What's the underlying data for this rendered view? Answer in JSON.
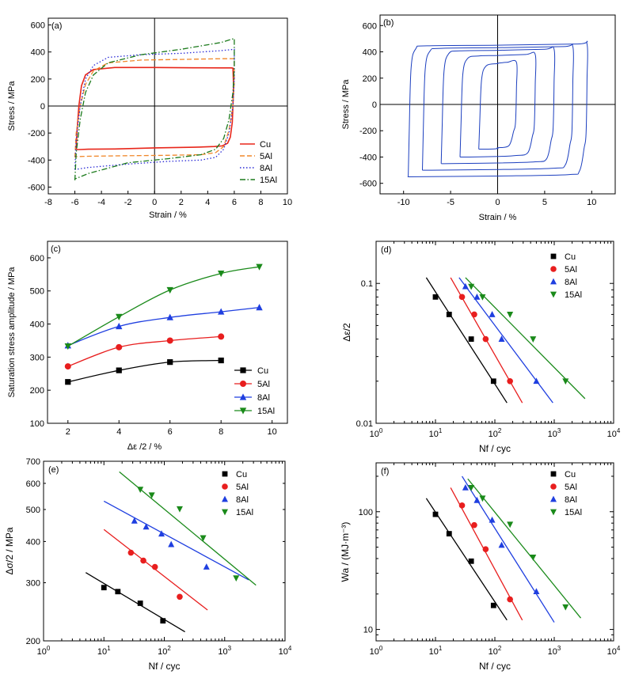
{
  "chart_data": [
    {
      "panel": "(a)",
      "type": "line",
      "xlabel": "Strain / %",
      "ylabel": "Stress / MPa",
      "xlim": [
        -8,
        10
      ],
      "ylim": [
        -650,
        650
      ],
      "xticks": [
        -8,
        -6,
        -4,
        -2,
        0,
        2,
        4,
        6,
        8,
        10
      ],
      "yticks": [
        -600,
        -400,
        -200,
        0,
        200,
        400,
        600
      ],
      "legend_position": "bottom-right",
      "series": [
        {
          "name": "Cu",
          "color": "#e8261a",
          "dash": "solid",
          "x": [
            -5.9,
            -5.85,
            -5.7,
            -5.5,
            -5.2,
            -4.6,
            -3.0,
            0,
            3.0,
            5.0,
            5.6,
            5.8,
            5.9,
            5.95,
            5.9,
            5.85,
            5.7,
            5.5,
            5.1,
            4.5,
            3.0,
            0,
            -3.0,
            -5.0,
            -5.6,
            -5.8,
            -5.9
          ],
          "y": [
            -320,
            -200,
            0,
            150,
            230,
            270,
            285,
            285,
            283,
            282,
            282,
            282,
            280,
            150,
            0,
            -120,
            -230,
            -275,
            -295,
            -300,
            -305,
            -310,
            -318,
            -320,
            -322,
            -322,
            -320
          ]
        },
        {
          "name": "5Al",
          "color": "#f0872a",
          "dash": "dashed",
          "x": [
            -6,
            -5.9,
            -5.6,
            -5.2,
            -4.6,
            -3.5,
            -1,
            2,
            5,
            6,
            6,
            5.9,
            5.6,
            5.2,
            4.6,
            3.5,
            1,
            -2,
            -5,
            -6,
            -6
          ],
          "y": [
            -380,
            -200,
            0,
            160,
            260,
            320,
            340,
            345,
            350,
            350,
            170,
            0,
            -180,
            -300,
            -345,
            -360,
            -365,
            -368,
            -372,
            -375,
            -380
          ]
        },
        {
          "name": "8Al",
          "color": "#2a2ad6",
          "dash": "dotted",
          "x": [
            -6,
            -5.9,
            -5.6,
            -5.2,
            -4.6,
            -3.5,
            -1,
            2,
            5,
            6,
            6,
            5.9,
            5.6,
            5.2,
            4.6,
            3.5,
            1,
            -2,
            -5,
            -6,
            -6
          ],
          "y": [
            -470,
            -250,
            0,
            200,
            300,
            360,
            380,
            390,
            410,
            420,
            200,
            0,
            -200,
            -320,
            -380,
            -400,
            -410,
            -430,
            -455,
            -470,
            -470
          ]
        },
        {
          "name": "15Al",
          "color": "#1b7a1b",
          "dash": "dashdot",
          "x": [
            -6,
            -5.9,
            -5.6,
            -5.2,
            -4.6,
            -3.5,
            -1,
            2,
            5,
            6,
            6,
            5.9,
            5.6,
            5.2,
            4.6,
            3.5,
            1,
            -2,
            -5,
            -6,
            -6
          ],
          "y": [
            -550,
            -350,
            -100,
            100,
            230,
            320,
            380,
            420,
            470,
            500,
            300,
            100,
            -100,
            -240,
            -320,
            -360,
            -390,
            -420,
            -500,
            -540,
            -550
          ]
        }
      ]
    },
    {
      "panel": "(b)",
      "type": "line",
      "xlabel": "Strain / %",
      "ylabel": "Stress / MPa",
      "xlim": [
        -12.5,
        12.5
      ],
      "ylim": [
        -680,
        680
      ],
      "xticks": [
        -10,
        -5,
        0,
        5,
        10
      ],
      "yticks": [
        -600,
        -400,
        -200,
        0,
        200,
        400,
        600
      ],
      "color": "#1c3fbf",
      "loops": [
        {
          "strain_amplitude": 2,
          "stress_min": -340,
          "stress_max": 320
        },
        {
          "strain_amplitude": 4,
          "stress_min": -400,
          "stress_max": 380
        },
        {
          "strain_amplitude": 6,
          "stress_min": -450,
          "stress_max": 420
        },
        {
          "strain_amplitude": 8,
          "stress_min": -500,
          "stress_max": 440
        },
        {
          "strain_amplitude": 9.5,
          "stress_min": -550,
          "stress_max": 460
        }
      ]
    },
    {
      "panel": "(c)",
      "type": "line",
      "xlabel": "Δε /2 / %",
      "ylabel": "Saturation stress amplitude / MPa",
      "xlim": [
        1.2,
        10.6
      ],
      "ylim": [
        100,
        650
      ],
      "xticks": [
        2,
        4,
        6,
        8,
        10
      ],
      "yticks": [
        100,
        200,
        300,
        400,
        500,
        600
      ],
      "legend_position": "bottom-right",
      "series": [
        {
          "name": "Cu",
          "color": "#000000",
          "marker": "square",
          "x": [
            2,
            4,
            6,
            8
          ],
          "y": [
            225,
            260,
            285,
            290
          ]
        },
        {
          "name": "5Al",
          "color": "#e81e1e",
          "marker": "circle",
          "x": [
            2,
            4,
            6,
            8
          ],
          "y": [
            272,
            330,
            350,
            362
          ]
        },
        {
          "name": "8Al",
          "color": "#1f3fe0",
          "marker": "triangle-up",
          "x": [
            2,
            4,
            6,
            8,
            9.5
          ],
          "y": [
            335,
            393,
            420,
            437,
            450
          ]
        },
        {
          "name": "15Al",
          "color": "#1a8a1a",
          "marker": "triangle-down",
          "x": [
            2,
            4,
            6,
            8,
            9.5
          ],
          "y": [
            333,
            422,
            503,
            553,
            573
          ]
        }
      ]
    },
    {
      "panel": "(d)",
      "type": "scatter",
      "xlabel": "Nf / cyc",
      "ylabel": "Δε/2",
      "xscale": "log",
      "yscale": "log",
      "xlim": [
        1,
        10000
      ],
      "ylim": [
        0.01,
        0.2
      ],
      "xtick_labels": [
        "10^0",
        "10^1",
        "10^2",
        "10^3",
        "10^4"
      ],
      "ytick_labels": [
        "0.01",
        "0.1"
      ],
      "legend_position": "top-right",
      "series": [
        {
          "name": "Cu",
          "color": "#000000",
          "marker": "square",
          "x": [
            10,
            17,
            40,
            95
          ],
          "y": [
            0.08,
            0.06,
            0.04,
            0.02
          ],
          "fit": [
            [
              7,
              0.11
            ],
            [
              160,
              0.014
            ]
          ]
        },
        {
          "name": "5Al",
          "color": "#e81e1e",
          "marker": "circle",
          "x": [
            28,
            45,
            70,
            180
          ],
          "y": [
            0.08,
            0.06,
            0.04,
            0.02
          ],
          "fit": [
            [
              18,
              0.11
            ],
            [
              290,
              0.014
            ]
          ]
        },
        {
          "name": "8Al",
          "color": "#1f3fe0",
          "marker": "triangle-up",
          "x": [
            32,
            50,
            90,
            130,
            500
          ],
          "y": [
            0.095,
            0.08,
            0.06,
            0.04,
            0.02
          ],
          "fit": [
            [
              25,
              0.11
            ],
            [
              950,
              0.014
            ]
          ]
        },
        {
          "name": "15Al",
          "color": "#1a8a1a",
          "marker": "triangle-down",
          "x": [
            40,
            62,
            180,
            440,
            1550
          ],
          "y": [
            0.095,
            0.08,
            0.06,
            0.04,
            0.02
          ],
          "fit": [
            [
              32,
              0.11
            ],
            [
              3300,
              0.015
            ]
          ]
        }
      ]
    },
    {
      "panel": "(e)",
      "type": "scatter",
      "xlabel": "Nf / cyc",
      "ylabel": "Δσ/2 / MPa",
      "xscale": "log",
      "yscale": "log",
      "xlim": [
        1,
        10000
      ],
      "ylim": [
        200,
        700
      ],
      "xtick_labels": [
        "10^0",
        "10^1",
        "10^2",
        "10^3",
        "10^4"
      ],
      "ytick_labels": [
        "200",
        "300",
        "400",
        "500",
        "600",
        "700"
      ],
      "legend_position": "top-right",
      "series": [
        {
          "name": "Cu",
          "color": "#000000",
          "marker": "square",
          "x": [
            10,
            17,
            40,
            95
          ],
          "y": [
            290,
            282,
            260,
            230
          ],
          "fit": [
            [
              5,
              322
            ],
            [
              220,
              213
            ]
          ]
        },
        {
          "name": "5Al",
          "color": "#e81e1e",
          "marker": "circle",
          "x": [
            28,
            45,
            70,
            180
          ],
          "y": [
            370,
            350,
            335,
            272
          ],
          "fit": [
            [
              10,
              435
            ],
            [
              520,
              248
            ]
          ]
        },
        {
          "name": "8Al",
          "color": "#1f3fe0",
          "marker": "triangle-up",
          "x": [
            32,
            50,
            90,
            130,
            500
          ],
          "y": [
            462,
            443,
            422,
            392,
            335
          ],
          "fit": [
            [
              10,
              530
            ],
            [
              2500,
              306
            ]
          ]
        },
        {
          "name": "15Al",
          "color": "#1a8a1a",
          "marker": "triangle-down",
          "x": [
            40,
            62,
            180,
            440,
            1550
          ],
          "y": [
            575,
            553,
            502,
            410,
            310
          ],
          "fit": [
            [
              18,
              650
            ],
            [
              3300,
              295
            ]
          ]
        }
      ]
    },
    {
      "panel": "(f)",
      "type": "scatter",
      "xlabel": "Nf / cyc",
      "ylabel": "Wa / (MJ·m⁻³)",
      "xscale": "log",
      "yscale": "log",
      "xlim": [
        1,
        10000
      ],
      "ylim": [
        8,
        260
      ],
      "xtick_labels": [
        "10^0",
        "10^1",
        "10^2",
        "10^3",
        "10^4"
      ],
      "ytick_labels": [
        "10",
        "100"
      ],
      "legend_position": "top-right",
      "series": [
        {
          "name": "Cu",
          "color": "#000000",
          "marker": "square",
          "x": [
            10,
            17,
            40,
            95
          ],
          "y": [
            95,
            65,
            38,
            16
          ],
          "fit": [
            [
              7,
              130
            ],
            [
              160,
              12
            ]
          ]
        },
        {
          "name": "5Al",
          "color": "#e81e1e",
          "marker": "circle",
          "x": [
            28,
            45,
            70,
            180
          ],
          "y": [
            113,
            77,
            48,
            18
          ],
          "fit": [
            [
              18,
              160
            ],
            [
              290,
              12
            ]
          ]
        },
        {
          "name": "8Al",
          "color": "#1f3fe0",
          "marker": "triangle-up",
          "x": [
            32,
            50,
            90,
            130,
            500
          ],
          "y": [
            160,
            125,
            85,
            52,
            21
          ],
          "fit": [
            [
              28,
              200
            ],
            [
              1000,
              11.5
            ]
          ]
        },
        {
          "name": "15Al",
          "color": "#1a8a1a",
          "marker": "triangle-down",
          "x": [
            40,
            62,
            180,
            440,
            1550
          ],
          "y": [
            160,
            130,
            78,
            41,
            15.5
          ],
          "fit": [
            [
              35,
              190
            ],
            [
              2800,
              12.5
            ]
          ]
        }
      ]
    }
  ]
}
